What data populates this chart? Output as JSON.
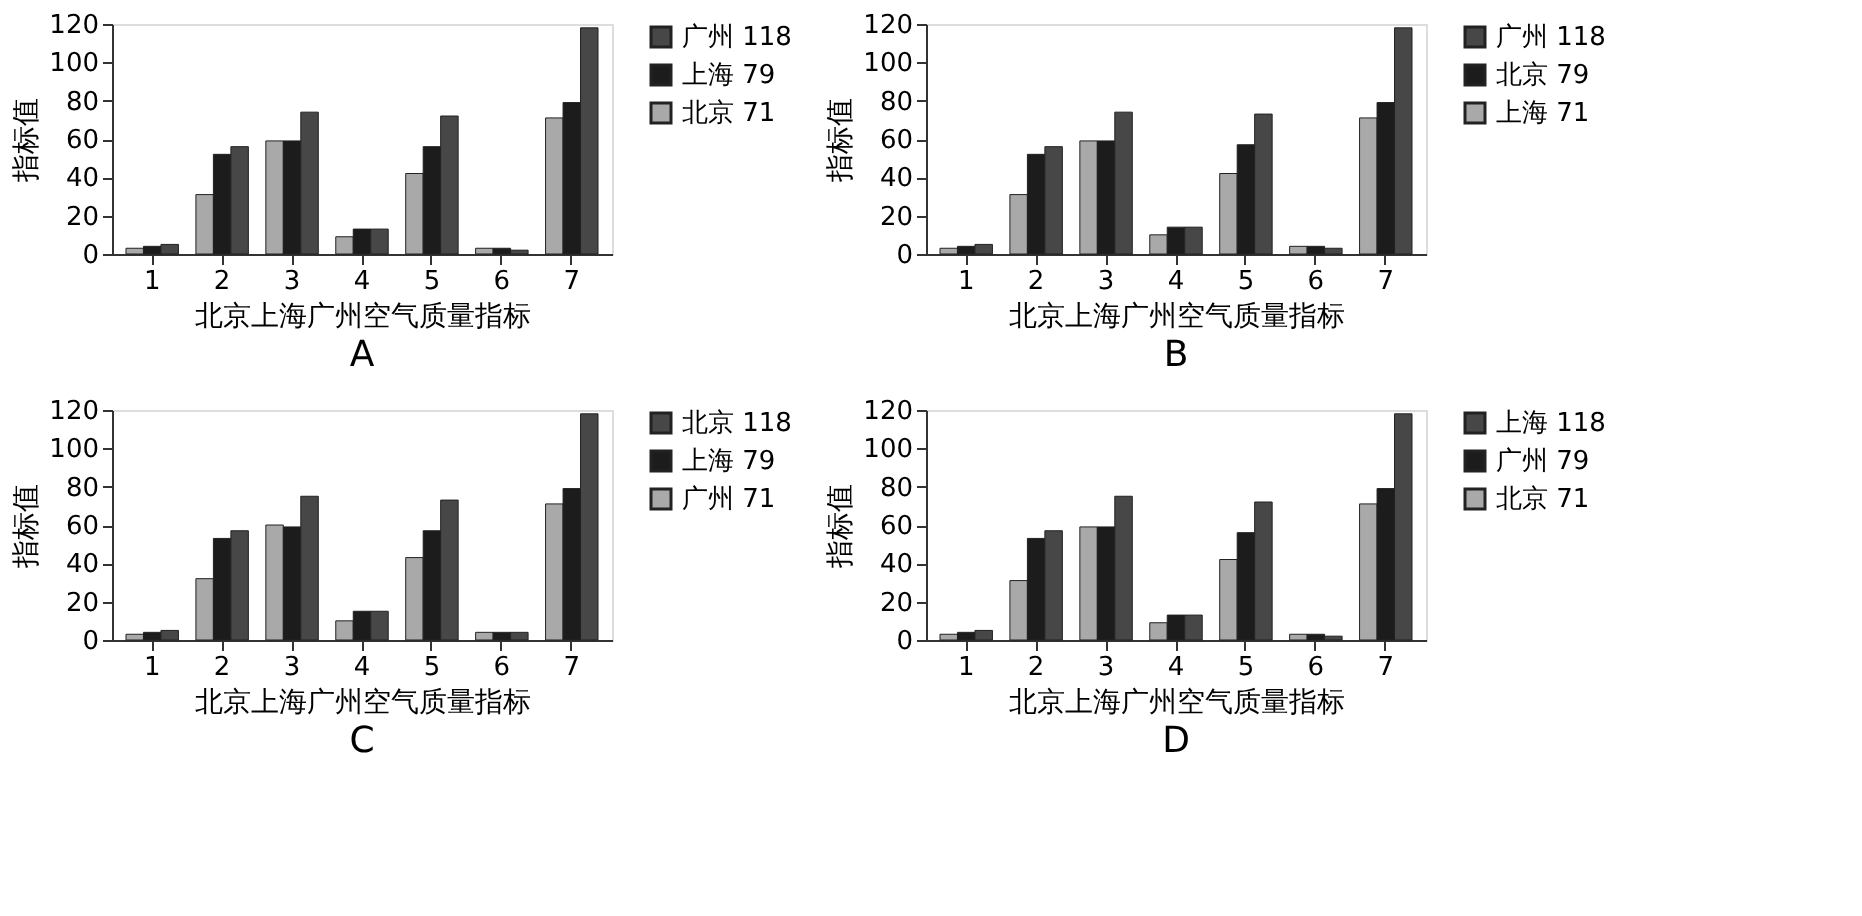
{
  "chart_data": [
    {
      "type": "bar",
      "title": "A",
      "xlabel": "北京上海广州空气质量指标",
      "ylabel": "指标值",
      "categories": [
        "1",
        "2",
        "3",
        "4",
        "5",
        "6",
        "7"
      ],
      "ylim": [
        0,
        120
      ],
      "yticks": [
        0,
        20,
        40,
        60,
        80,
        100,
        120
      ],
      "grid": false,
      "legend": "top right",
      "series": [
        {
          "name": "北京 71",
          "color": "#a9a9a9",
          "values": [
            3,
            31,
            59,
            9,
            42,
            3,
            71
          ]
        },
        {
          "name": "上海 79",
          "color": "#1c1c1c",
          "values": [
            4,
            52,
            59,
            13,
            56,
            3,
            79
          ]
        },
        {
          "name": "广州 118",
          "color": "#474747",
          "values": [
            5,
            56,
            74,
            13,
            72,
            2,
            118
          ]
        }
      ]
    },
    {
      "type": "bar",
      "title": "B",
      "xlabel": "北京上海广州空气质量指标",
      "ylabel": "指标值",
      "categories": [
        "1",
        "2",
        "3",
        "4",
        "5",
        "6",
        "7"
      ],
      "ylim": [
        0,
        120
      ],
      "yticks": [
        0,
        20,
        40,
        60,
        80,
        100,
        120
      ],
      "grid": false,
      "legend": "top right",
      "series": [
        {
          "name": "上海 71",
          "color": "#a9a9a9",
          "values": [
            3,
            31,
            59,
            10,
            42,
            4,
            71
          ]
        },
        {
          "name": "北京 79",
          "color": "#1c1c1c",
          "values": [
            4,
            52,
            59,
            14,
            57,
            4,
            79
          ]
        },
        {
          "name": "广州 118",
          "color": "#474747",
          "values": [
            5,
            56,
            74,
            14,
            73,
            3,
            118
          ]
        }
      ]
    },
    {
      "type": "bar",
      "title": "C",
      "xlabel": "北京上海广州空气质量指标",
      "ylabel": "指标值",
      "categories": [
        "1",
        "2",
        "3",
        "4",
        "5",
        "6",
        "7"
      ],
      "ylim": [
        0,
        120
      ],
      "yticks": [
        0,
        20,
        40,
        60,
        80,
        100,
        120
      ],
      "grid": false,
      "legend": "top right",
      "series": [
        {
          "name": "广州 71",
          "color": "#a9a9a9",
          "values": [
            3,
            32,
            60,
            10,
            43,
            4,
            71
          ]
        },
        {
          "name": "上海 79",
          "color": "#1c1c1c",
          "values": [
            4,
            53,
            59,
            15,
            57,
            4,
            79
          ]
        },
        {
          "name": "北京 118",
          "color": "#474747",
          "values": [
            5,
            57,
            75,
            15,
            73,
            4,
            118
          ]
        }
      ]
    },
    {
      "type": "bar",
      "title": "D",
      "xlabel": "北京上海广州空气质量指标",
      "ylabel": "指标值",
      "categories": [
        "1",
        "2",
        "3",
        "4",
        "5",
        "6",
        "7"
      ],
      "ylim": [
        0,
        120
      ],
      "yticks": [
        0,
        20,
        40,
        60,
        80,
        100,
        120
      ],
      "grid": false,
      "legend": "top right",
      "series": [
        {
          "name": "北京 71",
          "color": "#a9a9a9",
          "values": [
            3,
            31,
            59,
            9,
            42,
            3,
            71
          ]
        },
        {
          "name": "广州 79",
          "color": "#1c1c1c",
          "values": [
            4,
            53,
            59,
            13,
            56,
            3,
            79
          ]
        },
        {
          "name": "上海 118",
          "color": "#474747",
          "values": [
            5,
            57,
            75,
            13,
            72,
            2,
            118
          ]
        }
      ]
    }
  ]
}
